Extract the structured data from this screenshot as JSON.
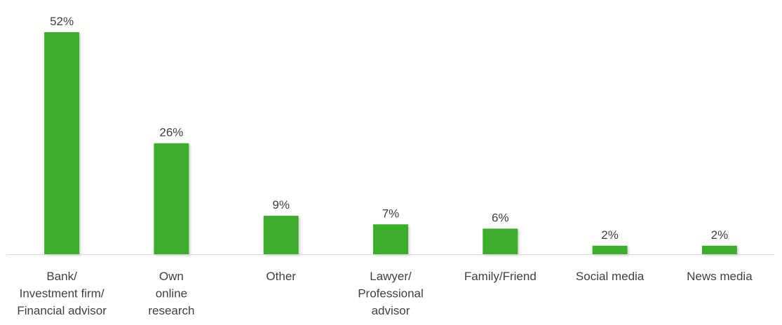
{
  "chart_data": {
    "type": "bar",
    "categories": [
      [
        "Bank/",
        "Investment firm/",
        "Financial advisor"
      ],
      [
        "Own",
        "online",
        "research"
      ],
      [
        "Other"
      ],
      [
        "Lawyer/",
        "Professional",
        "advisor"
      ],
      [
        "Family/Friend"
      ],
      [
        "Social media"
      ],
      [
        "News media"
      ]
    ],
    "values": [
      52,
      26,
      9,
      7,
      6,
      2,
      2
    ],
    "value_labels": [
      "52%",
      "26%",
      "9%",
      "7%",
      "6%",
      "2%",
      "2%"
    ],
    "unit": "%",
    "ylim": [
      0,
      52
    ],
    "grid": false,
    "legend": "none",
    "bar_color": "#3DAE2B",
    "axis_color": "#D9D9D9",
    "text_color": "#404040"
  }
}
